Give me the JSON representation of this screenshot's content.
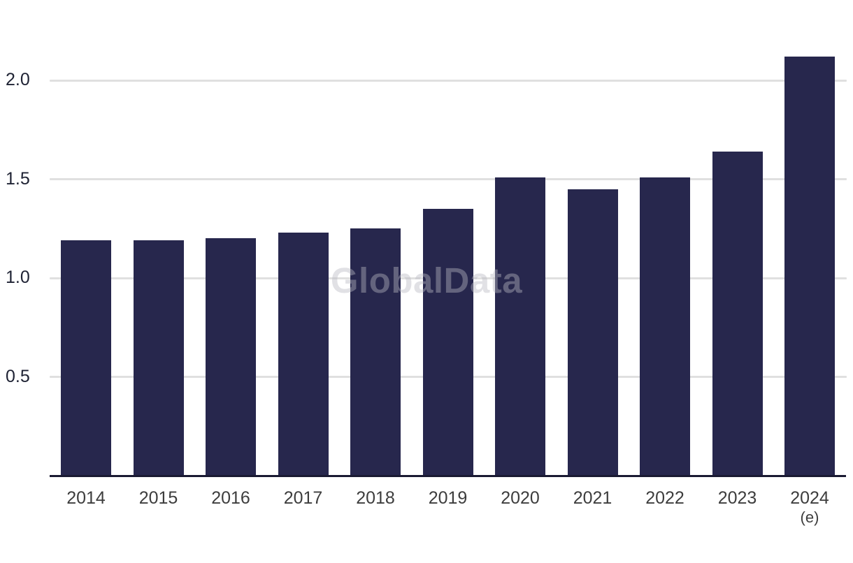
{
  "watermark_text": "GlobalData",
  "chart_data": {
    "type": "bar",
    "title": "",
    "xlabel": "",
    "ylabel": "",
    "categories": [
      "2014",
      "2015",
      "2016",
      "2017",
      "2018",
      "2019",
      "2020",
      "2021",
      "2022",
      "2023",
      "2024"
    ],
    "values": [
      1.19,
      1.19,
      1.2,
      1.23,
      1.25,
      1.35,
      1.51,
      1.45,
      1.51,
      1.64,
      2.12
    ],
    "estimate_note": "(e)",
    "estimate_index": 10,
    "yticks": [
      0.5,
      1.0,
      1.5,
      2.0
    ],
    "ytick_labels": [
      "0.5",
      "1.0",
      "1.5",
      "2.0"
    ],
    "ylim": [
      0,
      2.4
    ],
    "grid": true,
    "legend": false,
    "watermark": "GlobalData",
    "colors": {
      "bar": "#27274d",
      "gridline": "#e0e0e0",
      "axis_line": "#1a1a32",
      "ytick_label": "#1e2233",
      "xtick_label": "#3d3d3d",
      "watermark": "#b9b9c3",
      "background": "#ffffff"
    }
  }
}
